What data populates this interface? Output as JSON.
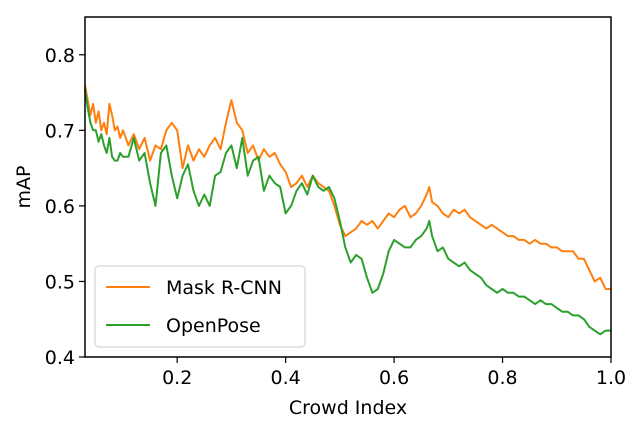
{
  "chart_data": {
    "type": "line",
    "title": "",
    "xlabel": "Crowd Index",
    "ylabel": "mAP",
    "xlim": [
      0.03,
      1.0
    ],
    "ylim": [
      0.4,
      0.85
    ],
    "xticks": [
      0.2,
      0.4,
      0.6,
      0.8,
      1.0
    ],
    "xtick_labels": [
      "0.2",
      "0.4",
      "0.6",
      "0.8",
      "1.0"
    ],
    "yticks": [
      0.4,
      0.5,
      0.6,
      0.7,
      0.8
    ],
    "ytick_labels": [
      "0.4",
      "0.5",
      "0.6",
      "0.7",
      "0.8"
    ],
    "grid": false,
    "legend_position": "lower-left",
    "series": [
      {
        "name": "Mask R-CNN",
        "color": "#ff7f0e",
        "x": [
          0.03,
          0.035,
          0.04,
          0.045,
          0.05,
          0.055,
          0.06,
          0.065,
          0.07,
          0.075,
          0.08,
          0.085,
          0.09,
          0.095,
          0.1,
          0.11,
          0.12,
          0.13,
          0.14,
          0.15,
          0.16,
          0.17,
          0.18,
          0.19,
          0.2,
          0.21,
          0.22,
          0.23,
          0.24,
          0.25,
          0.26,
          0.27,
          0.28,
          0.29,
          0.3,
          0.31,
          0.32,
          0.33,
          0.34,
          0.35,
          0.36,
          0.37,
          0.38,
          0.39,
          0.4,
          0.41,
          0.42,
          0.43,
          0.44,
          0.45,
          0.46,
          0.47,
          0.48,
          0.49,
          0.5,
          0.51,
          0.52,
          0.53,
          0.54,
          0.55,
          0.56,
          0.57,
          0.58,
          0.59,
          0.6,
          0.61,
          0.62,
          0.63,
          0.64,
          0.65,
          0.66,
          0.665,
          0.67,
          0.68,
          0.69,
          0.7,
          0.71,
          0.72,
          0.73,
          0.74,
          0.75,
          0.76,
          0.77,
          0.78,
          0.79,
          0.8,
          0.81,
          0.82,
          0.83,
          0.84,
          0.85,
          0.86,
          0.87,
          0.88,
          0.89,
          0.9,
          0.91,
          0.92,
          0.93,
          0.94,
          0.95,
          0.96,
          0.97,
          0.98,
          0.99,
          1.0
        ],
        "y": [
          0.76,
          0.74,
          0.72,
          0.735,
          0.71,
          0.725,
          0.7,
          0.71,
          0.695,
          0.735,
          0.72,
          0.7,
          0.705,
          0.69,
          0.7,
          0.68,
          0.695,
          0.675,
          0.69,
          0.66,
          0.68,
          0.675,
          0.7,
          0.71,
          0.7,
          0.65,
          0.68,
          0.66,
          0.675,
          0.665,
          0.68,
          0.69,
          0.675,
          0.71,
          0.74,
          0.71,
          0.7,
          0.67,
          0.68,
          0.66,
          0.675,
          0.665,
          0.67,
          0.655,
          0.645,
          0.625,
          0.63,
          0.64,
          0.625,
          0.64,
          0.63,
          0.625,
          0.62,
          0.6,
          0.575,
          0.56,
          0.565,
          0.57,
          0.58,
          0.575,
          0.58,
          0.57,
          0.58,
          0.59,
          0.585,
          0.595,
          0.6,
          0.585,
          0.59,
          0.6,
          0.615,
          0.625,
          0.605,
          0.6,
          0.59,
          0.585,
          0.595,
          0.59,
          0.595,
          0.585,
          0.58,
          0.575,
          0.57,
          0.575,
          0.57,
          0.565,
          0.56,
          0.56,
          0.555,
          0.555,
          0.55,
          0.555,
          0.55,
          0.55,
          0.545,
          0.545,
          0.54,
          0.54,
          0.54,
          0.53,
          0.53,
          0.515,
          0.5,
          0.505,
          0.49,
          0.49
        ]
      },
      {
        "name": "OpenPose",
        "color": "#2ca02c",
        "x": [
          0.03,
          0.035,
          0.04,
          0.045,
          0.05,
          0.055,
          0.06,
          0.065,
          0.07,
          0.075,
          0.08,
          0.085,
          0.09,
          0.095,
          0.1,
          0.11,
          0.12,
          0.13,
          0.14,
          0.15,
          0.16,
          0.17,
          0.18,
          0.19,
          0.2,
          0.21,
          0.22,
          0.23,
          0.24,
          0.25,
          0.26,
          0.27,
          0.28,
          0.29,
          0.3,
          0.31,
          0.32,
          0.33,
          0.34,
          0.35,
          0.36,
          0.37,
          0.38,
          0.39,
          0.4,
          0.41,
          0.42,
          0.43,
          0.44,
          0.45,
          0.46,
          0.47,
          0.48,
          0.49,
          0.5,
          0.51,
          0.52,
          0.53,
          0.54,
          0.55,
          0.56,
          0.57,
          0.58,
          0.59,
          0.6,
          0.61,
          0.62,
          0.63,
          0.64,
          0.65,
          0.66,
          0.665,
          0.67,
          0.68,
          0.69,
          0.7,
          0.71,
          0.72,
          0.73,
          0.74,
          0.75,
          0.76,
          0.77,
          0.78,
          0.79,
          0.8,
          0.81,
          0.82,
          0.83,
          0.84,
          0.85,
          0.86,
          0.87,
          0.88,
          0.89,
          0.9,
          0.91,
          0.92,
          0.93,
          0.94,
          0.95,
          0.96,
          0.97,
          0.98,
          0.99,
          1.0
        ],
        "y": [
          0.755,
          0.73,
          0.71,
          0.7,
          0.7,
          0.685,
          0.695,
          0.68,
          0.67,
          0.69,
          0.665,
          0.66,
          0.66,
          0.67,
          0.665,
          0.665,
          0.69,
          0.66,
          0.67,
          0.63,
          0.6,
          0.67,
          0.68,
          0.64,
          0.61,
          0.64,
          0.655,
          0.62,
          0.6,
          0.615,
          0.6,
          0.64,
          0.645,
          0.67,
          0.68,
          0.65,
          0.69,
          0.64,
          0.66,
          0.665,
          0.62,
          0.64,
          0.63,
          0.625,
          0.59,
          0.6,
          0.62,
          0.63,
          0.615,
          0.64,
          0.625,
          0.62,
          0.625,
          0.61,
          0.58,
          0.545,
          0.525,
          0.535,
          0.53,
          0.505,
          0.485,
          0.49,
          0.51,
          0.54,
          0.555,
          0.55,
          0.545,
          0.545,
          0.555,
          0.56,
          0.57,
          0.58,
          0.56,
          0.54,
          0.545,
          0.53,
          0.525,
          0.52,
          0.525,
          0.515,
          0.51,
          0.505,
          0.495,
          0.49,
          0.485,
          0.49,
          0.485,
          0.485,
          0.48,
          0.48,
          0.475,
          0.47,
          0.475,
          0.47,
          0.47,
          0.465,
          0.46,
          0.46,
          0.455,
          0.455,
          0.45,
          0.44,
          0.435,
          0.43,
          0.435,
          0.435
        ]
      }
    ]
  }
}
